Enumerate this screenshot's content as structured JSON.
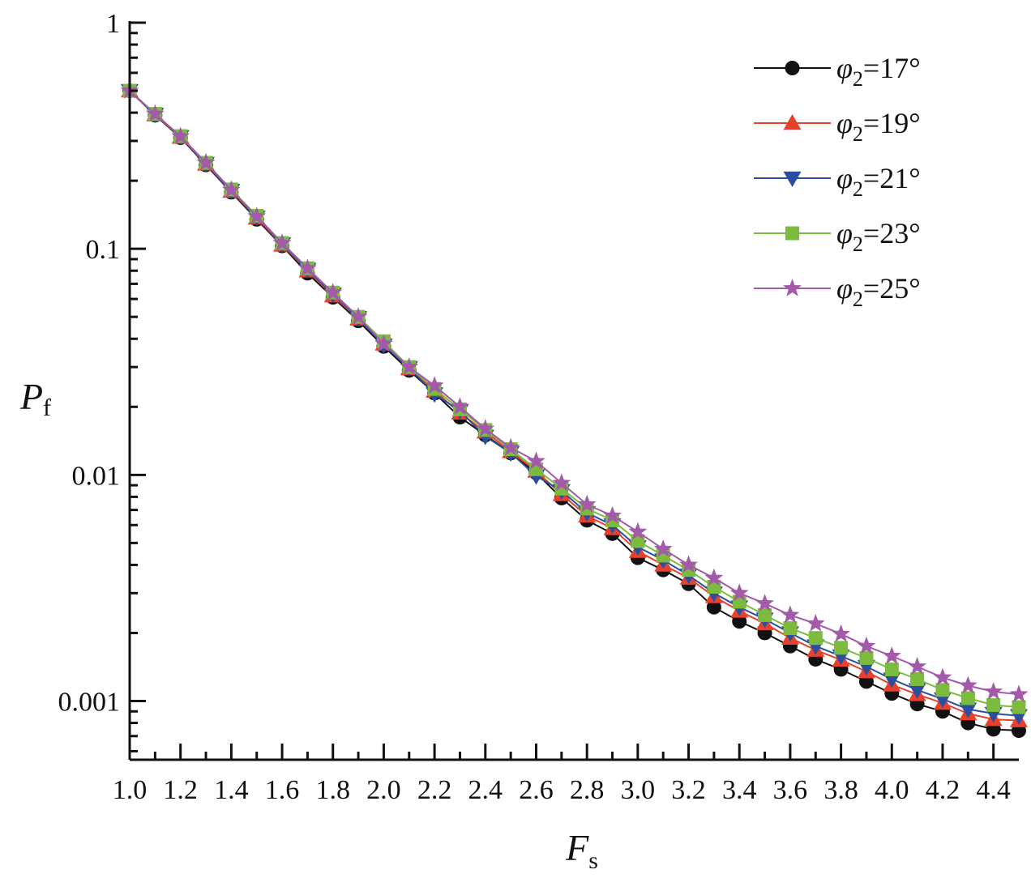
{
  "chart_data": {
    "type": "line",
    "title": "",
    "xlabel": "F",
    "xlabel_sub": "s",
    "ylabel": "P",
    "ylabel_sub": "f",
    "x_scale": "linear",
    "y_scale": "log",
    "xlim": [
      1.0,
      4.5
    ],
    "ylim": [
      0.00055,
      1
    ],
    "x_ticks": [
      "1.0",
      "1.2",
      "1.4",
      "1.6",
      "1.8",
      "2.0",
      "2.2",
      "2.4",
      "2.6",
      "2.8",
      "3.0",
      "3.2",
      "3.4",
      "3.6",
      "3.8",
      "4.0",
      "4.2",
      "4.4"
    ],
    "y_ticks": [
      "1",
      "0.1",
      "0.01",
      "0.001"
    ],
    "grid": false,
    "legend_position": "top-right",
    "x": [
      1.0,
      1.1,
      1.2,
      1.3,
      1.4,
      1.5,
      1.6,
      1.7,
      1.8,
      1.9,
      2.0,
      2.1,
      2.2,
      2.3,
      2.4,
      2.5,
      2.6,
      2.7,
      2.8,
      2.9,
      3.0,
      3.1,
      3.2,
      3.3,
      3.4,
      3.5,
      3.6,
      3.7,
      3.8,
      3.9,
      4.0,
      4.1,
      4.2,
      4.3,
      4.4,
      4.5
    ],
    "series": [
      {
        "name": "φ2=17°",
        "name_main": "φ",
        "name_sub": "2",
        "name_rest": "=17°",
        "color": "#111111",
        "marker": "circle",
        "values": [
          0.5,
          0.39,
          0.31,
          0.235,
          0.178,
          0.135,
          0.103,
          0.078,
          0.061,
          0.048,
          0.037,
          0.029,
          0.023,
          0.018,
          0.015,
          0.0125,
          0.0102,
          0.0079,
          0.0063,
          0.0055,
          0.0043,
          0.0038,
          0.0033,
          0.0026,
          0.00225,
          0.002,
          0.00175,
          0.00153,
          0.00138,
          0.00122,
          0.00108,
          0.00097,
          0.0009,
          0.0008,
          0.00075,
          0.00074
        ]
      },
      {
        "name": "φ2=19°",
        "name_main": "φ",
        "name_sub": "2",
        "name_rest": "=19°",
        "color": "#e8402a",
        "marker": "triangle-up",
        "values": [
          0.5,
          0.392,
          0.312,
          0.237,
          0.18,
          0.137,
          0.104,
          0.08,
          0.062,
          0.049,
          0.038,
          0.0295,
          0.0235,
          0.0188,
          0.0155,
          0.0127,
          0.0104,
          0.0082,
          0.0066,
          0.0058,
          0.0046,
          0.004,
          0.0035,
          0.0029,
          0.0025,
          0.0022,
          0.0019,
          0.00168,
          0.00152,
          0.00135,
          0.00118,
          0.00107,
          0.00098,
          0.00088,
          0.00083,
          0.00082
        ]
      },
      {
        "name": "φ2=21°",
        "name_main": "φ",
        "name_sub": "2",
        "name_rest": "=21°",
        "color": "#2b4f9e",
        "marker": "triangle-down",
        "values": [
          0.5,
          0.393,
          0.313,
          0.238,
          0.181,
          0.138,
          0.105,
          0.081,
          0.063,
          0.0495,
          0.0375,
          0.0298,
          0.0228,
          0.0192,
          0.0148,
          0.0125,
          0.0099,
          0.0085,
          0.0068,
          0.006,
          0.0048,
          0.0042,
          0.0036,
          0.003,
          0.0026,
          0.0023,
          0.002,
          0.00175,
          0.00158,
          0.00142,
          0.00125,
          0.00112,
          0.00102,
          0.00092,
          0.00088,
          0.00086
        ]
      },
      {
        "name": "φ2=23°",
        "name_main": "φ",
        "name_sub": "2",
        "name_rest": "=23°",
        "color": "#7cbb3e",
        "marker": "square",
        "values": [
          0.5,
          0.395,
          0.315,
          0.24,
          0.183,
          0.14,
          0.106,
          0.082,
          0.064,
          0.05,
          0.039,
          0.03,
          0.024,
          0.0195,
          0.0158,
          0.013,
          0.0106,
          0.0087,
          0.0071,
          0.0063,
          0.0051,
          0.0044,
          0.0038,
          0.0032,
          0.00275,
          0.0024,
          0.0021,
          0.0019,
          0.00172,
          0.00155,
          0.00138,
          0.00125,
          0.00112,
          0.00103,
          0.00096,
          0.00094
        ]
      },
      {
        "name": "φ2=25°",
        "name_main": "φ",
        "name_sub": "2",
        "name_rest": "=25°",
        "color": "#a35aa8",
        "marker": "star",
        "values": [
          0.5,
          0.395,
          0.314,
          0.24,
          0.182,
          0.139,
          0.106,
          0.082,
          0.064,
          0.05,
          0.038,
          0.03,
          0.0248,
          0.02,
          0.016,
          0.0132,
          0.0115,
          0.0092,
          0.0074,
          0.0066,
          0.0056,
          0.0047,
          0.004,
          0.0035,
          0.003,
          0.0027,
          0.0024,
          0.0022,
          0.00198,
          0.00175,
          0.00158,
          0.00142,
          0.00127,
          0.00117,
          0.0011,
          0.00107
        ]
      }
    ]
  }
}
